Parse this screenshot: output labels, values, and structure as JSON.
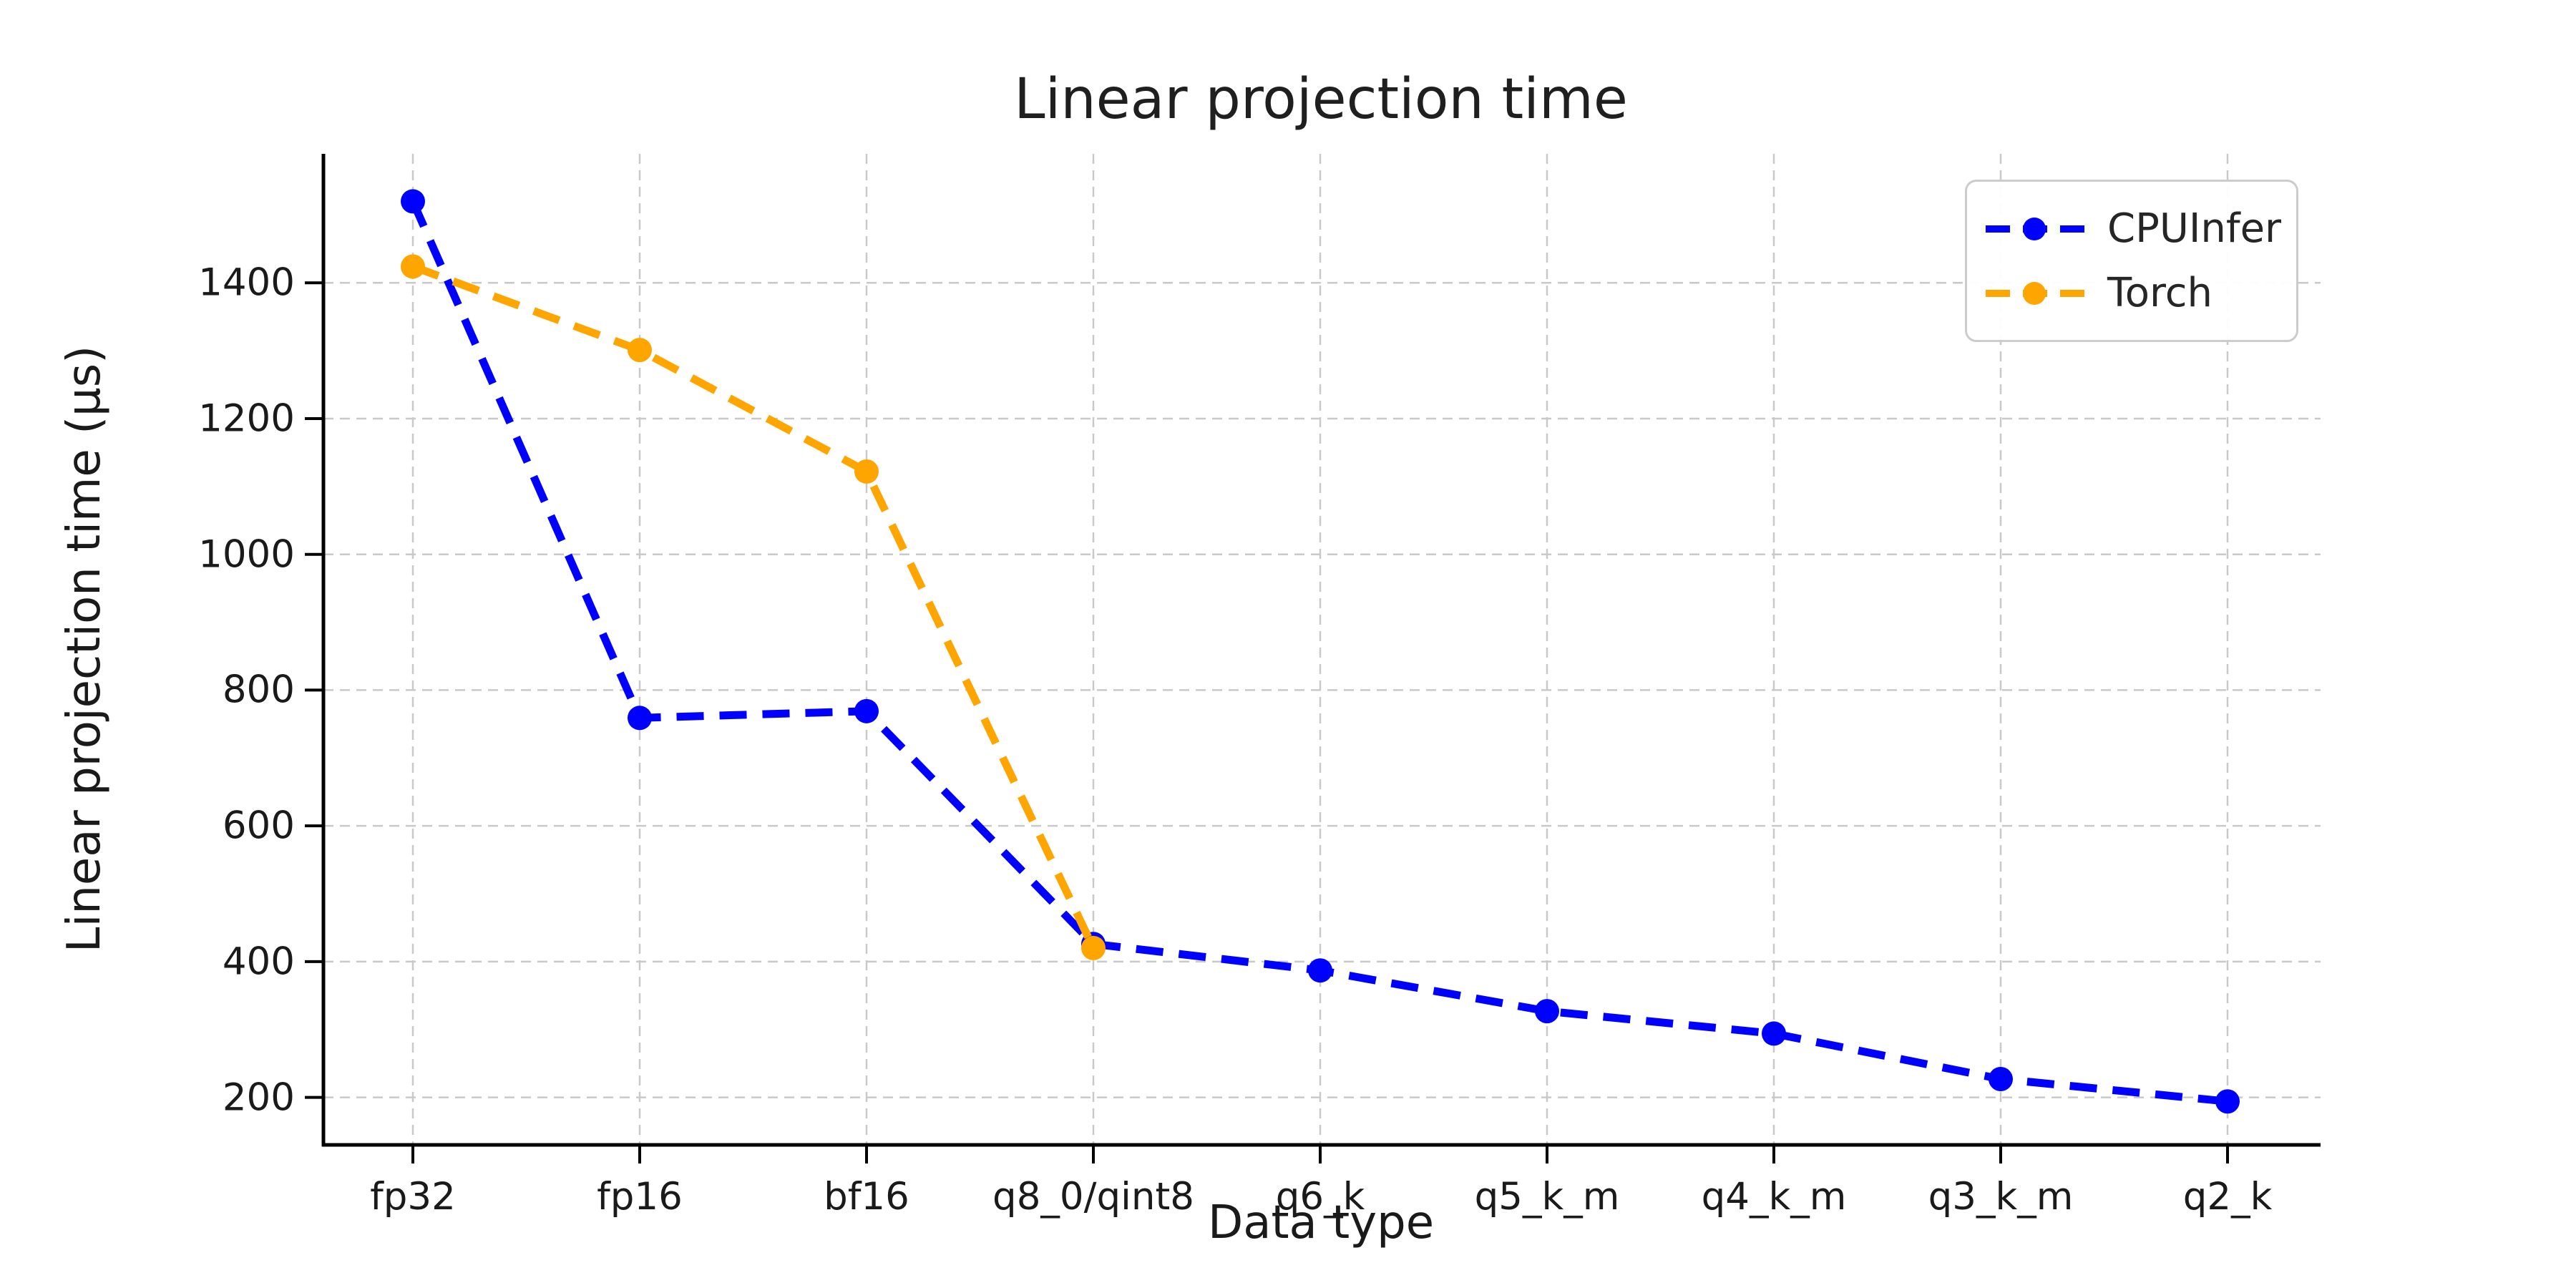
{
  "style": {
    "background": "#ffffff",
    "grid_color": "#c9c9c9",
    "spine_color": "#000000",
    "text_color": "#1a1a1a",
    "blue": "#0000ff",
    "orange": "#ffa500"
  },
  "chart_data": {
    "type": "line",
    "title": "Linear projection time",
    "xlabel": "Data type",
    "ylabel": "Linear projection time (μs)",
    "categories": [
      "fp32",
      "fp16",
      "bf16",
      "q8_0/qint8",
      "q6_k",
      "q5_k_m",
      "q4_k_m",
      "q3_k_m",
      "q2_k"
    ],
    "series": [
      {
        "name": "CPUInfer",
        "color": "#0000ff",
        "line_style": "dashed",
        "marker": "circle",
        "values": [
          1520,
          759,
          769,
          426,
          387,
          327,
          294,
          227,
          194
        ]
      },
      {
        "name": "Torch",
        "color": "#ffa500",
        "line_style": "dashed",
        "marker": "circle",
        "values": [
          1424,
          1301,
          1122,
          420,
          null,
          null,
          null,
          null,
          null
        ]
      }
    ],
    "y_ticks": [
      200,
      400,
      600,
      800,
      1000,
      1200,
      1400
    ],
    "ylim": [
      130,
      1590
    ],
    "grid": true,
    "grid_style": "dashed",
    "legend_position": "upper right"
  }
}
